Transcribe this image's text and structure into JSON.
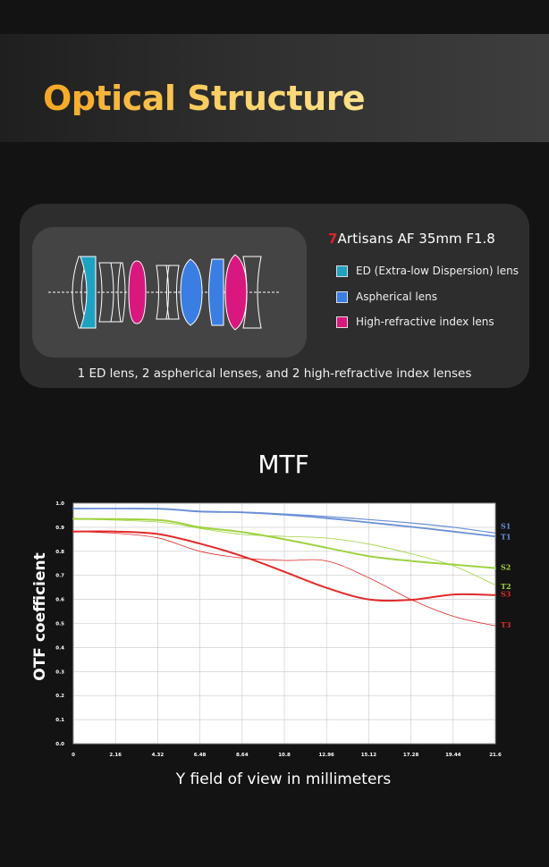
{
  "header": {
    "title": "Optical Structure"
  },
  "lens_card": {
    "brand_seven": "7",
    "brand_name": "Artisans",
    "brand_model": " AF 35mm F1.8",
    "legend": [
      {
        "label": "ED (Extra-low Dispersion) lens",
        "color": "#1fa2c2"
      },
      {
        "label": "Aspherical lens",
        "color": "#3a7de3"
      },
      {
        "label": "High-refractive index lens",
        "color": "#d9187f"
      }
    ],
    "summary": "1 ED lens, 2 aspherical lenses, and 2 high-refractive index lenses"
  },
  "chart_data": {
    "type": "line",
    "title": "MTF",
    "xlabel": "Y field of view in millimeters",
    "ylabel": "OTF coefficient",
    "xlim": [
      0,
      21.6
    ],
    "ylim": [
      0,
      1.0
    ],
    "x_ticks": [
      "0",
      "2.16",
      "4.32",
      "6.48",
      "8.64",
      "10.8",
      "12.96",
      "15.12",
      "17.28",
      "19.44",
      "21.6"
    ],
    "y_ticks": [
      "0.0",
      "0.1",
      "0.2",
      "0.3",
      "0.4",
      "0.5",
      "0.6",
      "0.7",
      "0.8",
      "0.9",
      "1.0"
    ],
    "grid": true,
    "series": [
      {
        "name": "S1",
        "color": "#6a8fd6",
        "width": 1.2,
        "points": [
          [
            0,
            0.978
          ],
          [
            4.32,
            0.977
          ],
          [
            6.48,
            0.967
          ],
          [
            8.64,
            0.963
          ],
          [
            10.8,
            0.955
          ],
          [
            12.96,
            0.945
          ],
          [
            15.12,
            0.932
          ],
          [
            17.28,
            0.918
          ],
          [
            19.44,
            0.9
          ],
          [
            21.6,
            0.876
          ]
        ]
      },
      {
        "name": "T1",
        "color": "#6a8fd6",
        "width": 1.8,
        "points": [
          [
            0,
            0.978
          ],
          [
            4.32,
            0.977
          ],
          [
            6.48,
            0.965
          ],
          [
            8.64,
            0.962
          ],
          [
            10.8,
            0.952
          ],
          [
            12.96,
            0.938
          ],
          [
            15.12,
            0.92
          ],
          [
            17.28,
            0.902
          ],
          [
            19.44,
            0.882
          ],
          [
            21.6,
            0.862
          ]
        ]
      },
      {
        "name": "S2",
        "color": "#9fd241",
        "width": 2.0,
        "points": [
          [
            0,
            0.935
          ],
          [
            4.32,
            0.93
          ],
          [
            6.48,
            0.9
          ],
          [
            8.64,
            0.88
          ],
          [
            10.8,
            0.85
          ],
          [
            12.96,
            0.815
          ],
          [
            15.12,
            0.78
          ],
          [
            17.28,
            0.76
          ],
          [
            19.44,
            0.745
          ],
          [
            21.6,
            0.73
          ]
        ]
      },
      {
        "name": "T2",
        "color": "#9fd241",
        "width": 0.8,
        "points": [
          [
            0,
            0.935
          ],
          [
            4.32,
            0.922
          ],
          [
            6.48,
            0.895
          ],
          [
            8.64,
            0.87
          ],
          [
            10.8,
            0.862
          ],
          [
            12.96,
            0.855
          ],
          [
            15.12,
            0.83
          ],
          [
            17.28,
            0.79
          ],
          [
            19.44,
            0.74
          ],
          [
            21.6,
            0.66
          ]
        ]
      },
      {
        "name": "S3",
        "color": "#e22a2a",
        "width": 2.0,
        "points": [
          [
            0,
            0.882
          ],
          [
            2.16,
            0.882
          ],
          [
            4.32,
            0.872
          ],
          [
            6.48,
            0.832
          ],
          [
            8.64,
            0.78
          ],
          [
            10.8,
            0.715
          ],
          [
            12.96,
            0.648
          ],
          [
            15.12,
            0.6
          ],
          [
            17.28,
            0.598
          ],
          [
            19.44,
            0.62
          ],
          [
            21.6,
            0.618
          ]
        ]
      },
      {
        "name": "T3",
        "color": "#e22a2a",
        "width": 0.8,
        "points": [
          [
            0,
            0.882
          ],
          [
            2.16,
            0.875
          ],
          [
            4.32,
            0.856
          ],
          [
            6.48,
            0.8
          ],
          [
            8.64,
            0.772
          ],
          [
            10.8,
            0.762
          ],
          [
            12.96,
            0.76
          ],
          [
            15.12,
            0.69
          ],
          [
            17.28,
            0.6
          ],
          [
            19.44,
            0.53
          ],
          [
            21.6,
            0.49
          ]
        ]
      }
    ],
    "labels": [
      {
        "text": "S1",
        "color": "#6a8fd6",
        "y": 0.905
      },
      {
        "text": "T1",
        "color": "#6a8fd6",
        "y": 0.86
      },
      {
        "text": "S2",
        "color": "#9fd241",
        "y": 0.735
      },
      {
        "text": "T2",
        "color": "#9fd241",
        "y": 0.655
      },
      {
        "text": "S3",
        "color": "#e22a2a",
        "y": 0.622
      },
      {
        "text": "T3",
        "color": "#e22a2a",
        "y": 0.495
      }
    ]
  }
}
